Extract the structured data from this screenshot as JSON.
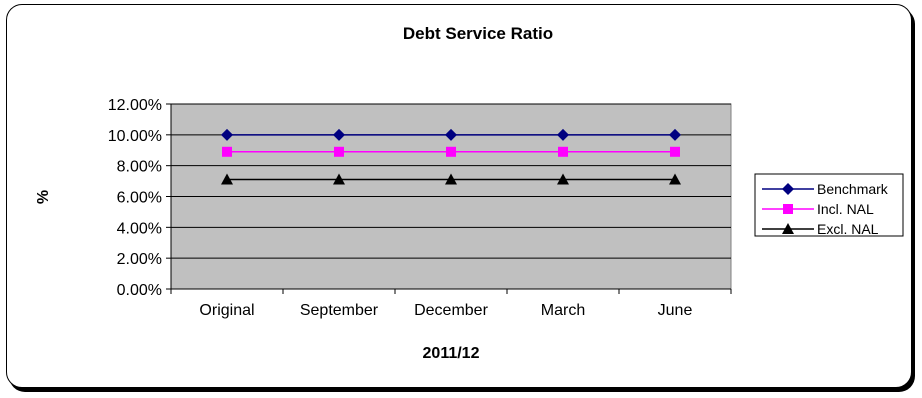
{
  "chart_data": {
    "type": "line",
    "title": "Debt Service Ratio",
    "xlabel": "2011/12",
    "ylabel": "%",
    "categories": [
      "Original",
      "September",
      "December",
      "March",
      "June"
    ],
    "y_ticks": [
      "0.00%",
      "2.00%",
      "4.00%",
      "6.00%",
      "8.00%",
      "10.00%",
      "12.00%"
    ],
    "ylim": [
      0,
      12
    ],
    "grid": true,
    "legend_position": "right",
    "series": [
      {
        "name": "Benchmark",
        "values": [
          10,
          10,
          10,
          10,
          10
        ],
        "color": "#000080",
        "marker": "diamond"
      },
      {
        "name": "Incl. NAL",
        "values": [
          8.9,
          8.9,
          8.9,
          8.9,
          8.9
        ],
        "color": "#ff00ff",
        "marker": "square"
      },
      {
        "name": "Excl. NAL",
        "values": [
          7.1,
          7.1,
          7.1,
          7.1,
          7.1
        ],
        "color": "#000000",
        "marker": "triangle"
      }
    ],
    "plot_background": "#c0c0c0"
  }
}
